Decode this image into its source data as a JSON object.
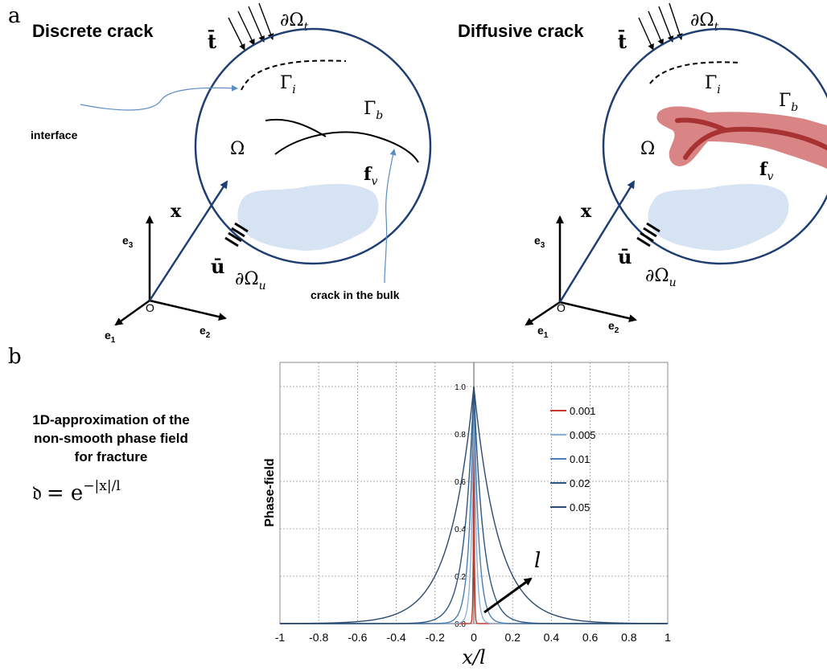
{
  "panel_a": {
    "label": "a",
    "left": {
      "title": "Discrete crack",
      "interface_label": "interface",
      "crack_label": "crack in the bulk"
    },
    "right": {
      "title": "Diffusive crack"
    },
    "symbols": {
      "traction": "t̄",
      "boundary_t": "∂Ω",
      "boundary_t_sub": "t",
      "gamma_i": "Γ",
      "gamma_i_sub": "i",
      "gamma_b": "Γ",
      "gamma_b_sub": "b",
      "omega": "Ω",
      "force": "f",
      "force_sub": "v",
      "position": "x",
      "displacement": "ū",
      "boundary_u": "∂Ω",
      "boundary_u_sub": "u",
      "origin": "O",
      "e1": "e",
      "e1_sub": "1",
      "e2": "e",
      "e2_sub": "2",
      "e3": "e",
      "e3_sub": "3"
    },
    "colors": {
      "circle": "#1f3f73",
      "inclusion": "#d6e3f3",
      "crack_zone": "#d98585",
      "crack_core": "#a83232"
    }
  },
  "panel_b": {
    "label": "b",
    "description": [
      "1D-approximation of the",
      "non-smooth phase field",
      "for fracture"
    ],
    "formula_lhs": "𝔡",
    "formula_eq": "= e",
    "formula_exp": "−|x|/l",
    "arrow_label": "l"
  },
  "chart_data": {
    "type": "line",
    "title": "",
    "xlabel": "x/l",
    "ylabel": "Phase-field",
    "xlim": [
      -1,
      1
    ],
    "ylim": [
      0,
      1.0
    ],
    "x_ticks": [
      "-1",
      "-0.8",
      "-0.6",
      "-0.4",
      "-0.2",
      "0",
      "0.2",
      "0.4",
      "0.6",
      "0.8",
      "1"
    ],
    "y_ticks": [
      "0.0",
      "0.2",
      "0.4",
      "0.6",
      "0.8",
      "1.0"
    ],
    "grid": true,
    "legend_position": "top-right",
    "function": "exp(-|x|/l)",
    "series": [
      {
        "name": "0.001",
        "l": 0.001,
        "color": "#c0392b"
      },
      {
        "name": "0.005",
        "l": 0.005,
        "color": "#8fb3d6"
      },
      {
        "name": "0.01",
        "l": 0.01,
        "color": "#4a7fb3"
      },
      {
        "name": "0.02",
        "l": 0.02,
        "color": "#2e5680"
      },
      {
        "name": "0.05",
        "l": 0.05,
        "color": "#2c4a6e"
      }
    ]
  }
}
